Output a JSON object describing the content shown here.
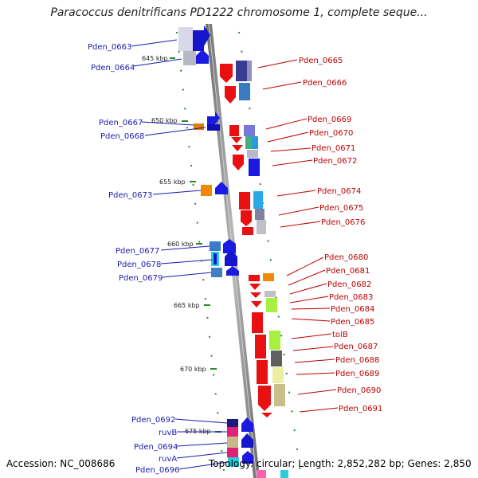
{
  "header": {
    "title": "Paracoccus denitrificans PD1222 chromosome 1, complete seque..."
  },
  "footer": {
    "accession": "Accession: NC_008686",
    "summary": "Topology: circular; Length: 2,852,282 bp; Genes: 2,850"
  },
  "scale_labels": [
    "645 kbp",
    "650 kbp",
    "655 kbp",
    "660 kbp",
    "665 kbp",
    "670 kbp",
    "675 kbp"
  ],
  "genes_left": [
    "Pden_0663",
    "Pden_0664",
    "Pden_0667",
    "Pden_0668",
    "Pden_0673",
    "Pden_0677",
    "Pden_0678",
    "Pden_0679",
    "Pden_0692",
    "ruvB",
    "Pden_0694",
    "ruvA",
    "Pden_0696"
  ],
  "genes_right": [
    "Pden_0665",
    "Pden_0666",
    "Pden_0669",
    "Pden_0670",
    "Pden_0671",
    "Pden_0672",
    "Pden_0674",
    "Pden_0675",
    "Pden_0676",
    "Pden_0680",
    "Pden_0681",
    "Pden_0682",
    "Pden_0683",
    "Pden_0684",
    "Pden_0685",
    "tolB",
    "Pden_0687",
    "Pden_0688",
    "Pden_0689",
    "Pden_0690",
    "Pden_0691"
  ],
  "colors": {
    "left_label": "#1a1ab0",
    "right_label": "#c00000",
    "backbone": "#8a8a8a",
    "ticks": "#2a8a2a"
  }
}
